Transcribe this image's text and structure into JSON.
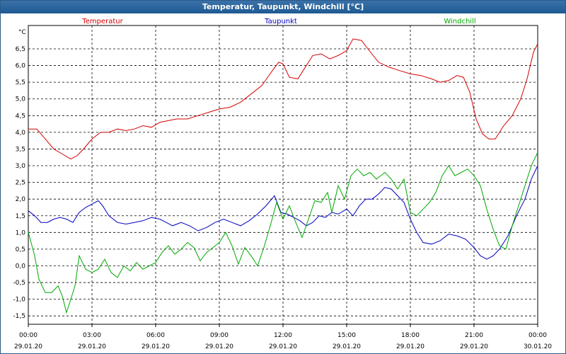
{
  "window": {
    "title": "Temperatur, Taupunkt, Windchill [°C]"
  },
  "chart_data": {
    "type": "line",
    "title": "Temperatur, Taupunkt, Windchill [°C]",
    "ylabel": "°C",
    "ylim": [
      -1.75,
      7.2
    ],
    "yticks": [
      -1.5,
      -1.0,
      -0.5,
      0.0,
      0.5,
      1.0,
      1.5,
      2.0,
      2.5,
      3.0,
      3.5,
      4.0,
      4.5,
      5.0,
      5.5,
      6.0,
      6.5
    ],
    "ytick_labels": [
      "-1,5",
      "-1,0",
      "-0,5",
      "0,0",
      "0,5",
      "1,0",
      "1,5",
      "2,0",
      "2,5",
      "3,0",
      "3,5",
      "4,0",
      "4,5",
      "5,0",
      "5,5",
      "6,0",
      "6,5"
    ],
    "xlim": [
      0,
      24
    ],
    "xticks": [
      {
        "x": 0,
        "time": "00:00",
        "date": "29.01.20"
      },
      {
        "x": 3,
        "time": "03:00",
        "date": "29.01.20"
      },
      {
        "x": 6,
        "time": "06:00",
        "date": "29.01.20"
      },
      {
        "x": 9,
        "time": "09:00",
        "date": "29.01.20"
      },
      {
        "x": 12,
        "time": "12:00",
        "date": "29.01.20"
      },
      {
        "x": 15,
        "time": "15:00",
        "date": "29.01.20"
      },
      {
        "x": 18,
        "time": "18:00",
        "date": "29.01.20"
      },
      {
        "x": 21,
        "time": "21:00",
        "date": "29.01.20"
      },
      {
        "x": 24,
        "time": "00:00",
        "date": "30.01.20"
      }
    ],
    "grid": true,
    "legend": "top",
    "series": [
      {
        "name": "Temperatur",
        "color": "#d40000",
        "points": [
          [
            0,
            4.1
          ],
          [
            0.4,
            4.1
          ],
          [
            0.8,
            3.8
          ],
          [
            1.2,
            3.5
          ],
          [
            1.6,
            3.35
          ],
          [
            2.0,
            3.2
          ],
          [
            2.3,
            3.3
          ],
          [
            2.6,
            3.5
          ],
          [
            3.0,
            3.8
          ],
          [
            3.4,
            4.0
          ],
          [
            3.8,
            4.0
          ],
          [
            4.2,
            4.1
          ],
          [
            4.6,
            4.05
          ],
          [
            5.0,
            4.1
          ],
          [
            5.4,
            4.2
          ],
          [
            5.8,
            4.15
          ],
          [
            6.2,
            4.3
          ],
          [
            6.6,
            4.35
          ],
          [
            7.0,
            4.4
          ],
          [
            7.5,
            4.4
          ],
          [
            8.0,
            4.5
          ],
          [
            8.5,
            4.6
          ],
          [
            9.0,
            4.7
          ],
          [
            9.5,
            4.75
          ],
          [
            10.0,
            4.9
          ],
          [
            10.5,
            5.15
          ],
          [
            11.0,
            5.4
          ],
          [
            11.5,
            5.85
          ],
          [
            11.8,
            6.1
          ],
          [
            12.0,
            6.05
          ],
          [
            12.3,
            5.65
          ],
          [
            12.7,
            5.6
          ],
          [
            13.0,
            5.9
          ],
          [
            13.4,
            6.3
          ],
          [
            13.8,
            6.35
          ],
          [
            14.2,
            6.2
          ],
          [
            14.6,
            6.3
          ],
          [
            15.0,
            6.45
          ],
          [
            15.3,
            6.8
          ],
          [
            15.7,
            6.75
          ],
          [
            16.0,
            6.5
          ],
          [
            16.5,
            6.1
          ],
          [
            17.0,
            5.95
          ],
          [
            17.5,
            5.85
          ],
          [
            18.0,
            5.75
          ],
          [
            18.5,
            5.7
          ],
          [
            19.0,
            5.6
          ],
          [
            19.4,
            5.5
          ],
          [
            19.8,
            5.55
          ],
          [
            20.2,
            5.7
          ],
          [
            20.5,
            5.65
          ],
          [
            20.8,
            5.2
          ],
          [
            21.1,
            4.4
          ],
          [
            21.4,
            3.95
          ],
          [
            21.7,
            3.8
          ],
          [
            22.0,
            3.8
          ],
          [
            22.4,
            4.2
          ],
          [
            22.8,
            4.5
          ],
          [
            23.2,
            5.0
          ],
          [
            23.5,
            5.6
          ],
          [
            23.8,
            6.4
          ],
          [
            24.0,
            6.65
          ]
        ]
      },
      {
        "name": "Taupunkt",
        "color": "#0000c0",
        "points": [
          [
            0,
            1.65
          ],
          [
            0.3,
            1.5
          ],
          [
            0.6,
            1.3
          ],
          [
            0.9,
            1.3
          ],
          [
            1.2,
            1.4
          ],
          [
            1.5,
            1.45
          ],
          [
            1.8,
            1.4
          ],
          [
            2.1,
            1.3
          ],
          [
            2.4,
            1.6
          ],
          [
            2.7,
            1.75
          ],
          [
            3.0,
            1.85
          ],
          [
            3.3,
            1.95
          ],
          [
            3.5,
            1.8
          ],
          [
            3.8,
            1.5
          ],
          [
            4.2,
            1.3
          ],
          [
            4.6,
            1.25
          ],
          [
            5.0,
            1.3
          ],
          [
            5.4,
            1.35
          ],
          [
            5.8,
            1.45
          ],
          [
            6.2,
            1.4
          ],
          [
            6.5,
            1.3
          ],
          [
            6.8,
            1.2
          ],
          [
            7.2,
            1.3
          ],
          [
            7.6,
            1.2
          ],
          [
            8.0,
            1.05
          ],
          [
            8.4,
            1.15
          ],
          [
            8.8,
            1.3
          ],
          [
            9.2,
            1.4
          ],
          [
            9.6,
            1.3
          ],
          [
            10.0,
            1.2
          ],
          [
            10.4,
            1.35
          ],
          [
            10.8,
            1.55
          ],
          [
            11.2,
            1.8
          ],
          [
            11.6,
            2.1
          ],
          [
            11.9,
            1.6
          ],
          [
            12.2,
            1.55
          ],
          [
            12.5,
            1.45
          ],
          [
            12.8,
            1.35
          ],
          [
            13.1,
            1.2
          ],
          [
            13.4,
            1.3
          ],
          [
            13.7,
            1.5
          ],
          [
            14.0,
            1.45
          ],
          [
            14.3,
            1.6
          ],
          [
            14.6,
            1.55
          ],
          [
            15.0,
            1.7
          ],
          [
            15.3,
            1.5
          ],
          [
            15.6,
            1.8
          ],
          [
            15.9,
            2.0
          ],
          [
            16.2,
            2.0
          ],
          [
            16.5,
            2.15
          ],
          [
            16.8,
            2.35
          ],
          [
            17.1,
            2.3
          ],
          [
            17.4,
            2.1
          ],
          [
            17.7,
            1.9
          ],
          [
            18.0,
            1.4
          ],
          [
            18.3,
            1.0
          ],
          [
            18.6,
            0.7
          ],
          [
            19.0,
            0.65
          ],
          [
            19.4,
            0.75
          ],
          [
            19.8,
            0.95
          ],
          [
            20.2,
            0.9
          ],
          [
            20.6,
            0.8
          ],
          [
            21.0,
            0.55
          ],
          [
            21.3,
            0.3
          ],
          [
            21.6,
            0.2
          ],
          [
            21.9,
            0.3
          ],
          [
            22.2,
            0.5
          ],
          [
            22.6,
            0.9
          ],
          [
            23.0,
            1.5
          ],
          [
            23.4,
            2.0
          ],
          [
            23.7,
            2.6
          ],
          [
            24.0,
            3.0
          ]
        ]
      },
      {
        "name": "Windchill",
        "color": "#00a800",
        "points": [
          [
            0,
            1.0
          ],
          [
            0.3,
            0.3
          ],
          [
            0.5,
            -0.4
          ],
          [
            0.8,
            -0.8
          ],
          [
            1.1,
            -0.8
          ],
          [
            1.4,
            -0.6
          ],
          [
            1.6,
            -0.9
          ],
          [
            1.8,
            -1.4
          ],
          [
            2.0,
            -1.0
          ],
          [
            2.2,
            -0.6
          ],
          [
            2.4,
            0.3
          ],
          [
            2.7,
            -0.1
          ],
          [
            3.0,
            -0.2
          ],
          [
            3.3,
            -0.1
          ],
          [
            3.6,
            0.2
          ],
          [
            3.9,
            -0.2
          ],
          [
            4.2,
            -0.35
          ],
          [
            4.5,
            0.0
          ],
          [
            4.8,
            -0.15
          ],
          [
            5.1,
            0.1
          ],
          [
            5.4,
            -0.1
          ],
          [
            5.7,
            0.0
          ],
          [
            6.0,
            0.1
          ],
          [
            6.3,
            0.4
          ],
          [
            6.6,
            0.6
          ],
          [
            6.9,
            0.35
          ],
          [
            7.2,
            0.5
          ],
          [
            7.5,
            0.7
          ],
          [
            7.8,
            0.55
          ],
          [
            8.1,
            0.15
          ],
          [
            8.4,
            0.4
          ],
          [
            8.7,
            0.55
          ],
          [
            9.0,
            0.7
          ],
          [
            9.3,
            1.0
          ],
          [
            9.6,
            0.6
          ],
          [
            9.9,
            0.05
          ],
          [
            10.2,
            0.55
          ],
          [
            10.5,
            0.3
          ],
          [
            10.8,
            0.0
          ],
          [
            11.1,
            0.55
          ],
          [
            11.4,
            1.2
          ],
          [
            11.7,
            1.9
          ],
          [
            12.0,
            1.4
          ],
          [
            12.3,
            1.8
          ],
          [
            12.6,
            1.3
          ],
          [
            12.9,
            0.85
          ],
          [
            13.2,
            1.4
          ],
          [
            13.5,
            1.95
          ],
          [
            13.8,
            1.9
          ],
          [
            14.1,
            2.2
          ],
          [
            14.3,
            1.6
          ],
          [
            14.6,
            2.4
          ],
          [
            14.9,
            2.0
          ],
          [
            15.2,
            2.7
          ],
          [
            15.5,
            2.9
          ],
          [
            15.8,
            2.7
          ],
          [
            16.1,
            2.8
          ],
          [
            16.4,
            2.6
          ],
          [
            16.8,
            2.8
          ],
          [
            17.1,
            2.6
          ],
          [
            17.4,
            2.3
          ],
          [
            17.7,
            2.6
          ],
          [
            18.0,
            1.6
          ],
          [
            18.3,
            1.5
          ],
          [
            18.6,
            1.7
          ],
          [
            18.9,
            1.9
          ],
          [
            19.2,
            2.2
          ],
          [
            19.5,
            2.7
          ],
          [
            19.8,
            3.0
          ],
          [
            20.1,
            2.7
          ],
          [
            20.4,
            2.8
          ],
          [
            20.7,
            2.9
          ],
          [
            21.0,
            2.7
          ],
          [
            21.3,
            2.4
          ],
          [
            21.6,
            1.7
          ],
          [
            21.9,
            1.1
          ],
          [
            22.2,
            0.6
          ],
          [
            22.5,
            0.5
          ],
          [
            22.8,
            1.2
          ],
          [
            23.1,
            1.8
          ],
          [
            23.4,
            2.4
          ],
          [
            23.7,
            3.0
          ],
          [
            24.0,
            3.4
          ]
        ]
      }
    ]
  }
}
